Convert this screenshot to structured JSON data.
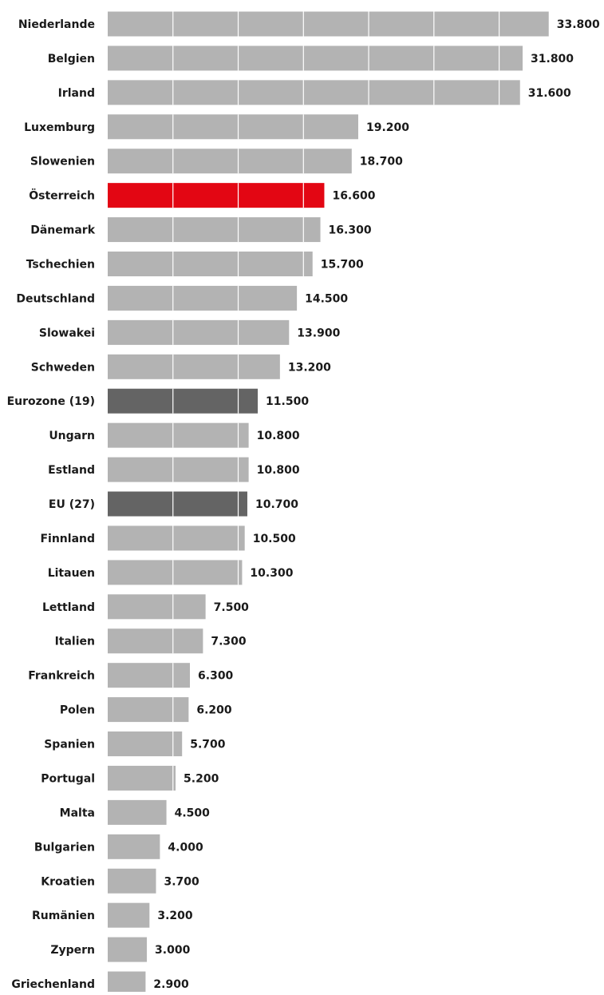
{
  "chart_data": {
    "type": "bar",
    "orientation": "horizontal",
    "title": "",
    "xlabel": "",
    "ylabel": "",
    "grid": true,
    "xlim": [
      0,
      34000
    ],
    "categories": [
      "Niederlande",
      "Belgien",
      "Irland",
      "Luxemburg",
      "Slowenien",
      "Österreich",
      "Dänemark",
      "Tschechien",
      "Deutschland",
      "Slowakei",
      "Schweden",
      "Eurozone (19)",
      "Ungarn",
      "Estland",
      "EU (27)",
      "Finnland",
      "Litauen",
      "Lettland",
      "Italien",
      "Frankreich",
      "Polen",
      "Spanien",
      "Portugal",
      "Malta",
      "Bulgarien",
      "Kroatien",
      "Rumänien",
      "Zypern",
      "Griechenland"
    ],
    "values": [
      33800,
      31800,
      31600,
      19200,
      18700,
      16600,
      16300,
      15700,
      14500,
      13900,
      13200,
      11500,
      10800,
      10800,
      10700,
      10500,
      10300,
      7500,
      7300,
      6300,
      6200,
      5700,
      5200,
      4500,
      4000,
      3700,
      3200,
      3000,
      2900
    ],
    "value_labels": [
      "33.800",
      "31.800",
      "31.600",
      "19.200",
      "18.700",
      "16.600",
      "16.300",
      "15.700",
      "14.500",
      "13.900",
      "13.200",
      "11.500",
      "10.800",
      "10.800",
      "10.700",
      "10.500",
      "10.300",
      "7.500",
      "7.300",
      "6.300",
      "6.200",
      "5.700",
      "5.200",
      "4.500",
      "4.000",
      "3.700",
      "3.200",
      "3.000",
      "2.900"
    ],
    "highlight": {
      "Österreich": "#e30613",
      "Eurozone (19)": "#646464",
      "EU (27)": "#646464"
    },
    "colors": {
      "bar": "#b3b3b3",
      "gridline": "#ffffff",
      "label": "#1a1a1a"
    }
  }
}
